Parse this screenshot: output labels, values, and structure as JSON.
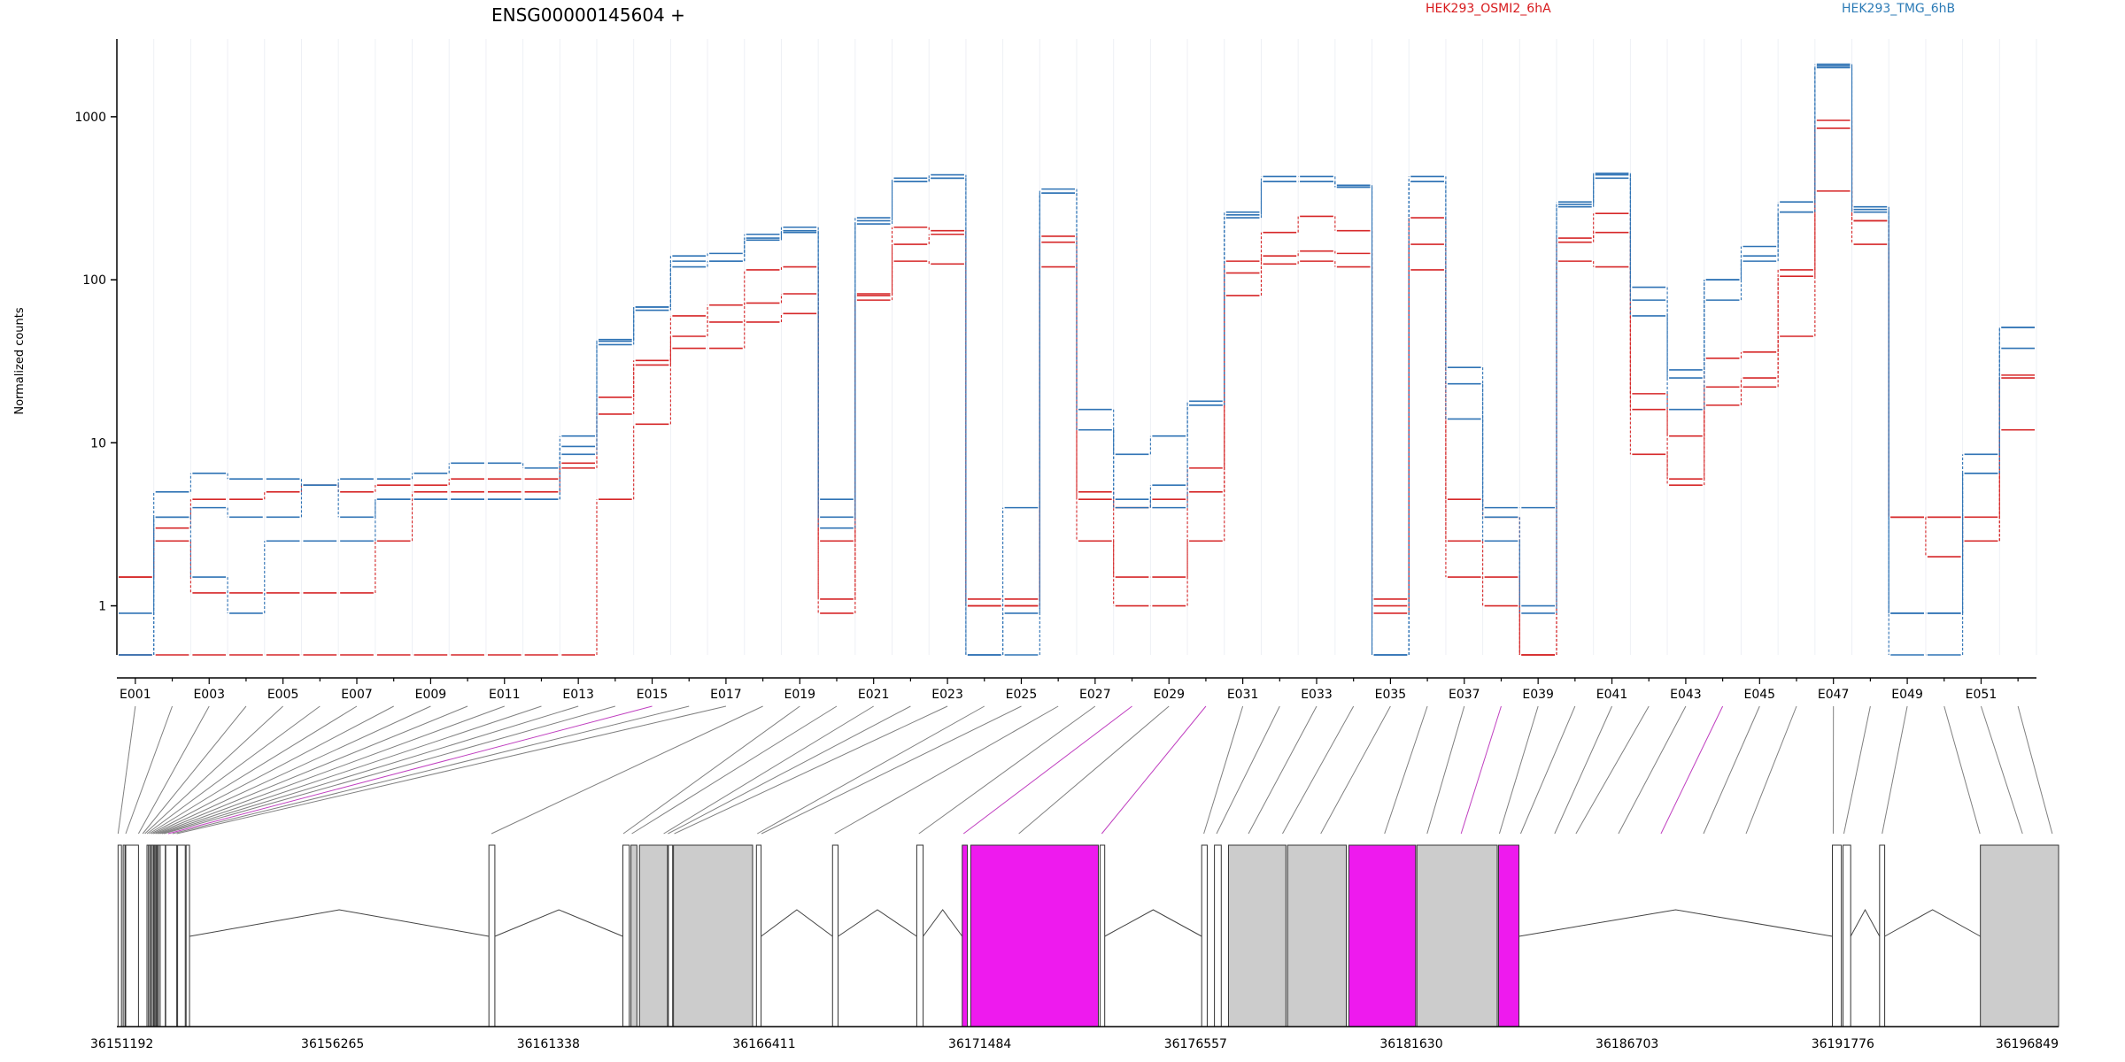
{
  "title": "ENSG00000145604 +",
  "ylabel": "Normalized counts",
  "legend": [
    {
      "label": "HEK293_OSMI2_6hA",
      "color": "#d7191c"
    },
    {
      "label": "HEK293_TMG_6hB",
      "color": "#2c7bb6"
    }
  ],
  "colors": {
    "red": "#d62728",
    "blue": "#2f73b5",
    "exon_gray": "#cccccc",
    "exon_magenta": "#ee1aee",
    "connector_gray": "#808080",
    "connector_magenta": "#c040c0"
  },
  "chart_data": {
    "type": "line",
    "y_scale": "log",
    "ylim": [
      0.5,
      3000
    ],
    "y_ticks": [
      {
        "v": 1,
        "label": "1"
      },
      {
        "v": 10,
        "label": "10"
      },
      {
        "v": 100,
        "label": "100"
      },
      {
        "v": 1000,
        "label": "1000"
      }
    ],
    "x_tick_labels": [
      "E001",
      "E003",
      "E005",
      "E007",
      "E009",
      "E011",
      "E013",
      "E015",
      "E017",
      "E019",
      "E021",
      "E023",
      "E025",
      "E027",
      "E029",
      "E031",
      "E033",
      "E035",
      "E037",
      "E039",
      "E041",
      "E043",
      "E045",
      "E047",
      "E049",
      "E051"
    ],
    "exons": [
      "E001",
      "E002",
      "E003",
      "E004",
      "E005",
      "E006",
      "E007",
      "E008",
      "E009",
      "E010",
      "E011",
      "E012",
      "E013",
      "E014",
      "E015",
      "E016",
      "E017",
      "E018",
      "E019",
      "E020",
      "E021",
      "E022",
      "E023",
      "E024",
      "E025",
      "E026",
      "E027",
      "E028",
      "E029",
      "E030",
      "E031",
      "E032",
      "E033",
      "E034",
      "E035",
      "E036",
      "E037",
      "E038",
      "E039",
      "E040",
      "E041",
      "E042",
      "E043",
      "E044",
      "E045",
      "E046",
      "E047",
      "E048",
      "E049",
      "E050",
      "E051",
      "E052"
    ],
    "series": [
      {
        "group": "HEK293_OSMI2_6hA",
        "values": [
          1.5,
          3,
          4.5,
          4.5,
          5,
          5.5,
          5,
          5.5,
          5.5,
          6,
          6,
          6,
          7,
          19,
          32,
          60,
          55,
          72,
          82,
          1.1,
          82,
          165,
          190,
          1.1,
          1.1,
          185,
          5,
          4,
          4.5,
          7,
          110,
          140,
          150,
          145,
          1.1,
          240,
          4.5,
          3.5,
          0.5,
          180,
          195,
          16,
          11,
          33,
          36,
          115,
          950,
          230,
          3.5,
          3.5,
          3.5,
          26
        ]
      },
      {
        "group": "HEK293_OSMI2_6hA",
        "values": [
          1.5,
          2.5,
          1.2,
          1.2,
          1.2,
          1.2,
          1.2,
          2.5,
          5,
          5,
          5,
          5,
          7.5,
          15,
          30,
          38,
          38,
          55,
          62,
          0.9,
          75,
          130,
          125,
          1,
          1,
          120,
          2.5,
          1.5,
          1.5,
          5,
          80,
          125,
          130,
          120,
          1,
          115,
          1.5,
          1.5,
          0.5,
          130,
          120,
          8.5,
          5.5,
          17,
          22,
          45,
          350,
          165,
          3.5,
          2,
          2.5,
          12
        ]
      },
      {
        "group": "HEK293_OSMI2_6hA",
        "values": [
          0.5,
          0.5,
          0.5,
          0.5,
          0.5,
          0.5,
          0.5,
          0.5,
          0.5,
          0.5,
          0.5,
          0.5,
          0.5,
          4.5,
          13,
          45,
          70,
          115,
          120,
          2.5,
          80,
          210,
          200,
          1,
          1,
          170,
          4.5,
          1,
          1,
          2.5,
          130,
          195,
          245,
          200,
          0.9,
          165,
          2.5,
          1,
          0.5,
          170,
          255,
          20,
          6,
          22,
          25,
          105,
          850,
          230,
          3.5,
          3.5,
          2.5,
          25
        ]
      },
      {
        "group": "HEK293_TMG_6hB",
        "values": [
          0.9,
          3.5,
          4,
          3.5,
          3.5,
          5.5,
          3.5,
          4.5,
          4.5,
          4.5,
          4.5,
          4.5,
          8.5,
          40,
          65,
          130,
          130,
          180,
          200,
          3.5,
          230,
          400,
          420,
          0.5,
          0.5,
          340,
          12,
          4,
          5.5,
          17,
          240,
          400,
          400,
          370,
          0.5,
          400,
          14,
          3.5,
          1,
          290,
          440,
          60,
          16,
          75,
          130,
          260,
          2000,
          260,
          0.9,
          0.9,
          6.5,
          38
        ]
      },
      {
        "group": "HEK293_TMG_6hB",
        "values": [
          0.5,
          5,
          6.5,
          6,
          6,
          5.5,
          6,
          6,
          6.5,
          7.5,
          7.5,
          7,
          11,
          43,
          68,
          140,
          145,
          190,
          210,
          4.5,
          240,
          420,
          440,
          0.5,
          4,
          360,
          16,
          8.5,
          11,
          18,
          260,
          430,
          430,
          380,
          0.5,
          430,
          29,
          4,
          4,
          300,
          450,
          90,
          28,
          100,
          160,
          300,
          2100,
          280,
          0.5,
          0.5,
          8.5,
          51
        ]
      },
      {
        "group": "HEK293_TMG_6hB",
        "values": [
          0.5,
          3.5,
          1.5,
          0.9,
          2.5,
          2.5,
          2.5,
          4.5,
          4.5,
          4.5,
          4.5,
          4.5,
          9.5,
          42,
          68,
          120,
          130,
          175,
          195,
          3,
          220,
          400,
          420,
          0.5,
          0.9,
          340,
          12,
          4.5,
          4,
          17,
          250,
          400,
          400,
          370,
          0.5,
          400,
          23,
          2.5,
          0.9,
          280,
          420,
          75,
          25,
          100,
          140,
          260,
          2050,
          270,
          0.9,
          0.9,
          6.5,
          51
        ]
      }
    ],
    "gene_axis_ticks": [
      "36151192",
      "36156265",
      "36161338",
      "36166411",
      "36171484",
      "36176557",
      "36181630",
      "36186703",
      "36191776",
      "36196849"
    ]
  }
}
